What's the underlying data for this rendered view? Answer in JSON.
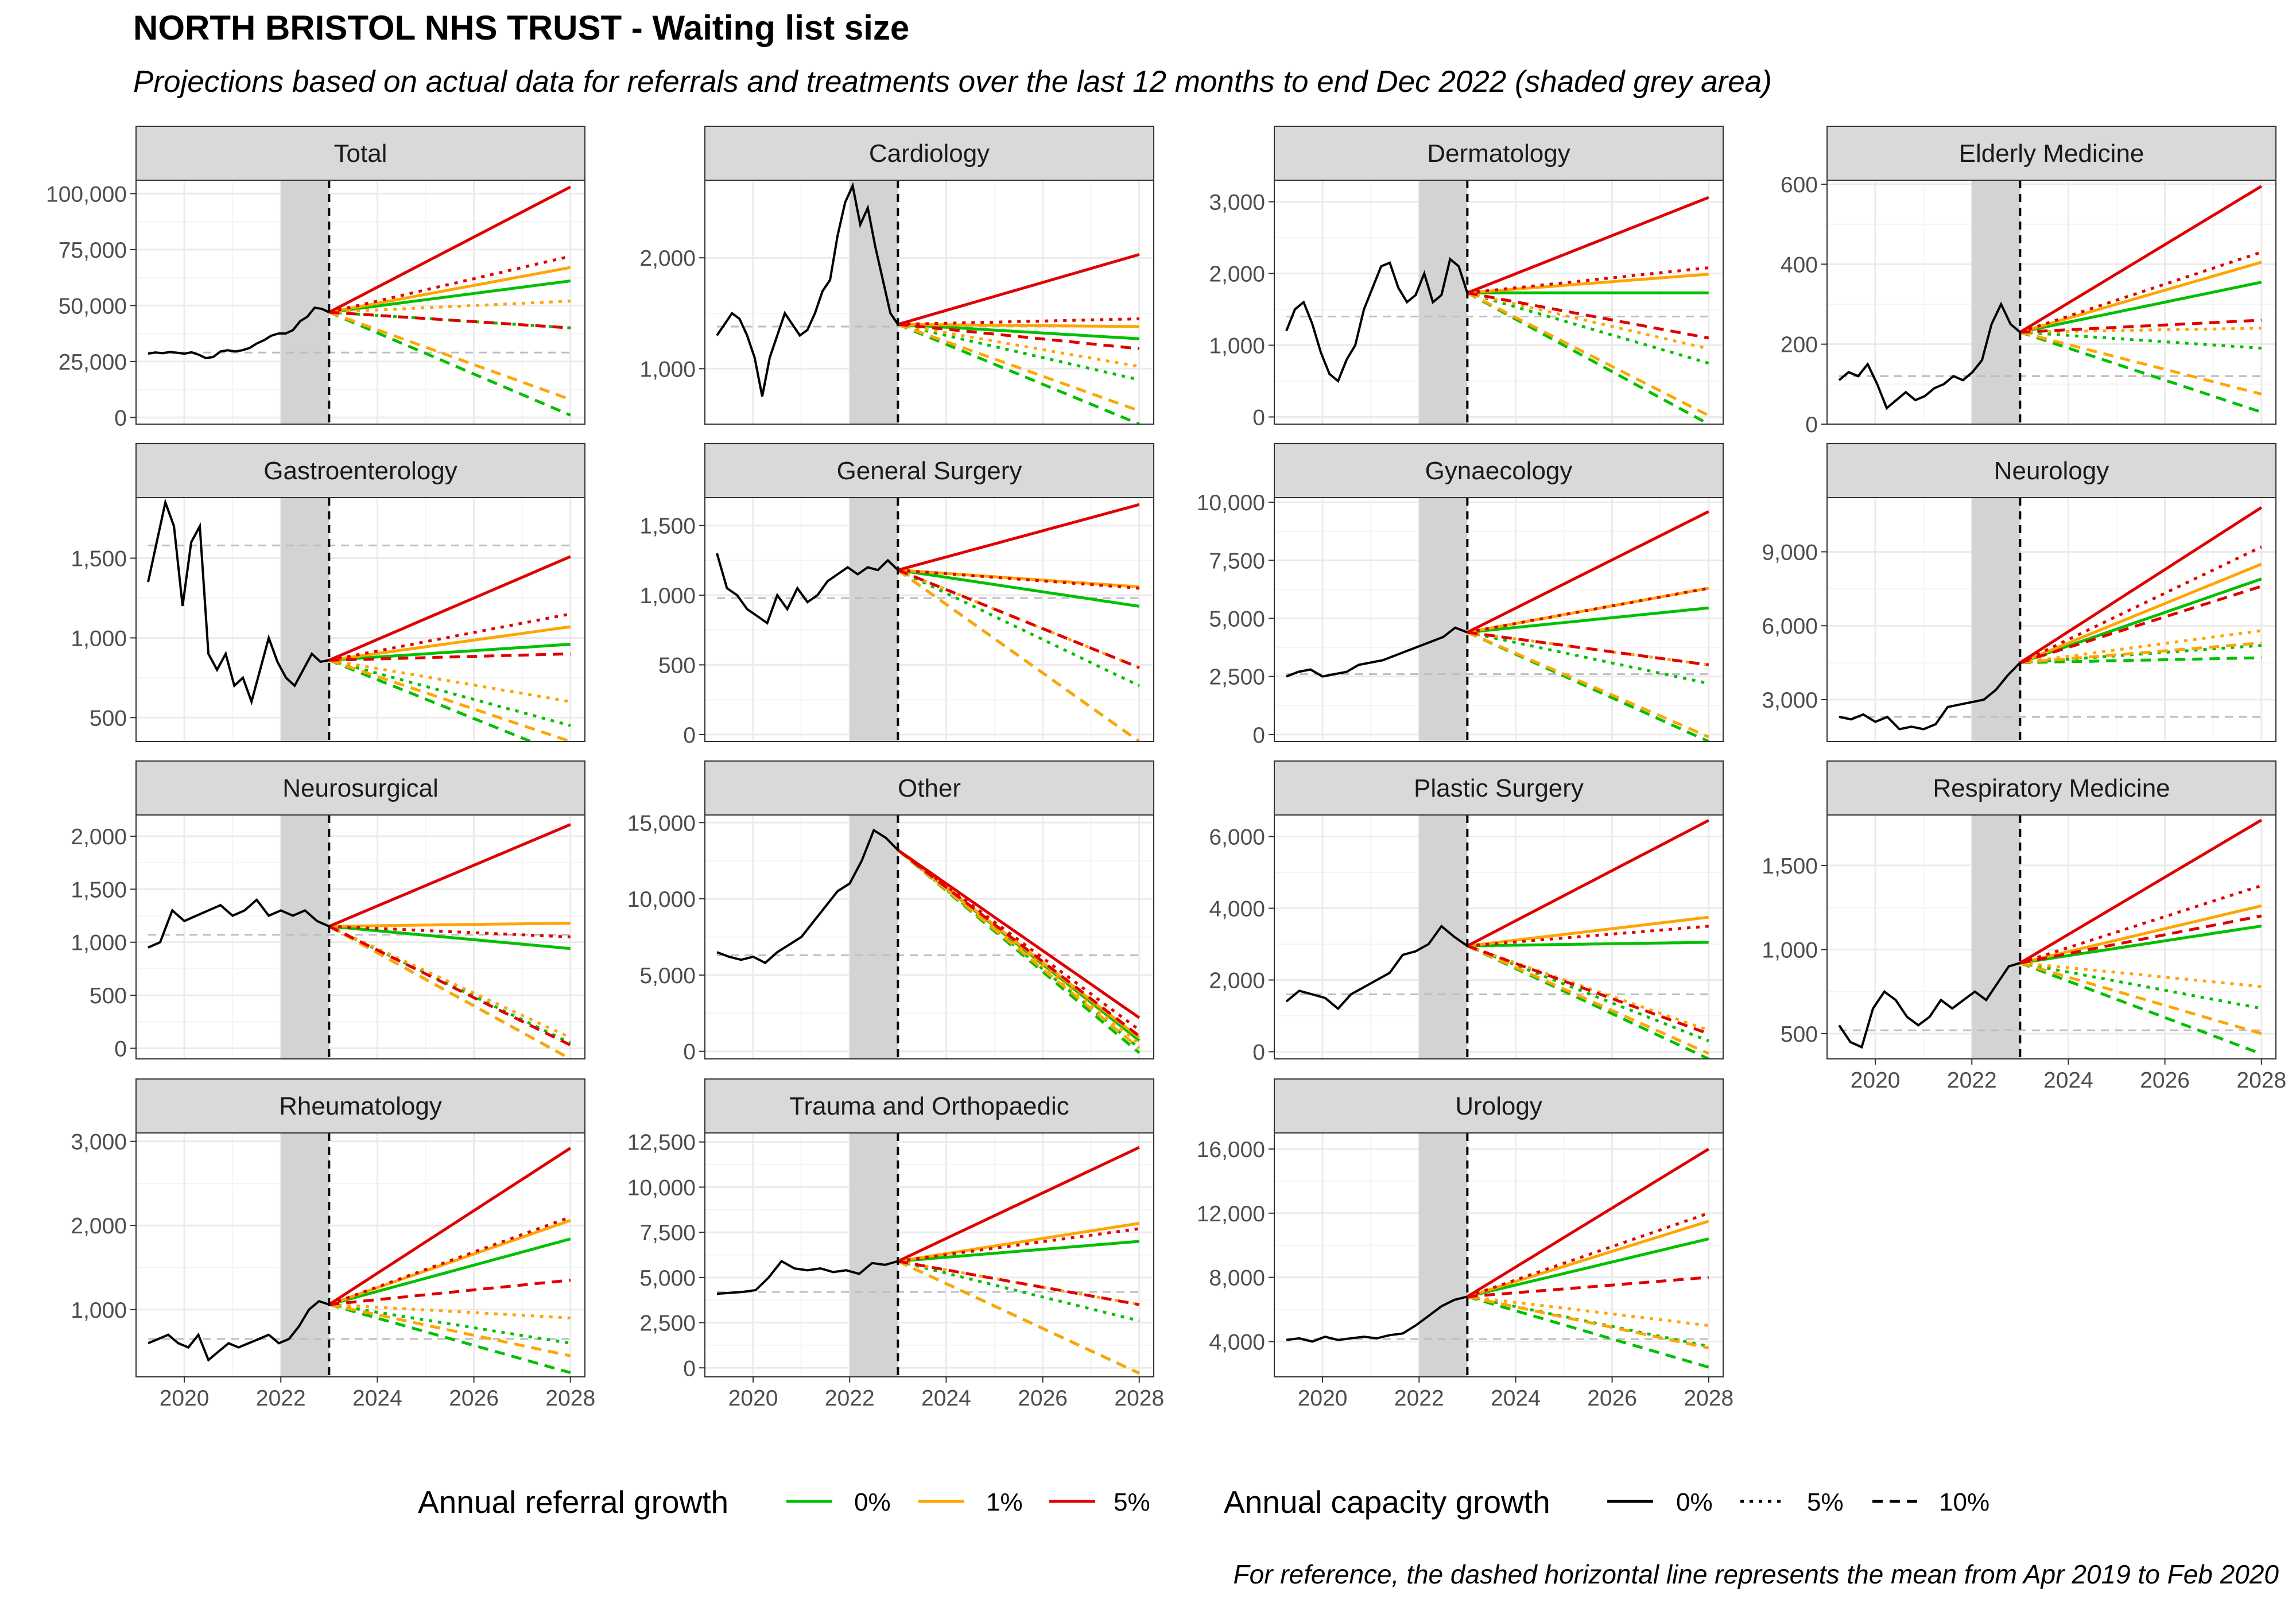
{
  "title": "NORTH BRISTOL NHS TRUST - Waiting list size",
  "subtitle": "Projections based on actual data for referrals and treatments over the last 12 months to end Dec 2022 (shaded grey area)",
  "caption": "For reference, the dashed horizontal line represents the mean from Apr 2019 to Feb 2020",
  "colors": {
    "referral_0": "#00c000",
    "referral_1": "#ffa500",
    "referral_5": "#e00000",
    "actual": "#000000",
    "reference": "#bebebe",
    "shade": "#d3d3d3",
    "strip": "#d9d9d9",
    "grid_major": "#ebebeb",
    "grid_minor": "#f4f4f4"
  },
  "legend": {
    "referral": {
      "title": "Annual referral growth",
      "items": [
        {
          "label": "0%",
          "color": "#00c000"
        },
        {
          "label": "1%",
          "color": "#ffa500"
        },
        {
          "label": "5%",
          "color": "#e00000"
        }
      ]
    },
    "capacity": {
      "title": "Annual capacity growth",
      "items": [
        {
          "label": "0%",
          "linetype": "solid"
        },
        {
          "label": "5%",
          "linetype": "dotted"
        },
        {
          "label": "10%",
          "linetype": "dashed"
        }
      ]
    }
  },
  "chart_data": {
    "type": "line",
    "x_axis": {
      "range": [
        2019.0,
        2028.3
      ],
      "ticks": [
        2020,
        2022,
        2024,
        2026,
        2028
      ],
      "tick_labels": [
        "2020",
        "2022",
        "2024",
        "2026",
        "2028"
      ]
    },
    "shaded_period": [
      2022.0,
      2023.0
    ],
    "forecast_start": 2023.0,
    "projection_end": 2028.0,
    "actual_start": 2019.25,
    "scenarios_order": [
      "0% referral / 0% capacity",
      "0% / 5%",
      "0% / 10%",
      "1% / 0%",
      "1% / 5%",
      "1% / 10%",
      "5% / 0%",
      "5% / 5%",
      "5% / 10%"
    ],
    "panels": [
      {
        "name": "Total",
        "ylim": [
          -3000,
          106000
        ],
        "yticks": [
          0,
          25000,
          50000,
          75000,
          100000
        ],
        "ytick_labels": [
          "0",
          "25,000",
          "50,000",
          "75,000",
          "100,000"
        ],
        "reference": 29000,
        "start": 47000,
        "actual": [
          28500,
          29000,
          28700,
          29200,
          28900,
          28500,
          29100,
          28000,
          26500,
          27000,
          29500,
          30000,
          29500,
          30000,
          31000,
          33000,
          34500,
          36500,
          37500,
          37500,
          39000,
          43000,
          45000,
          49000,
          48500,
          47000
        ],
        "proj": {
          "ref0": [
            61000,
            40000,
            1000
          ],
          "ref1": [
            67000,
            52000,
            8000
          ],
          "ref5": [
            103000,
            72000,
            40000
          ]
        }
      },
      {
        "name": "Cardiology",
        "ylim": [
          500,
          2700
        ],
        "yticks": [
          1000,
          2000
        ],
        "ytick_labels": [
          "1,000",
          "2,000"
        ],
        "reference": 1380,
        "start": 1400,
        "actual": [
          1300,
          1400,
          1500,
          1450,
          1300,
          1100,
          750,
          1100,
          1300,
          1500,
          1400,
          1300,
          1350,
          1500,
          1700,
          1800,
          2200,
          2500,
          2650,
          2300,
          2450,
          2100,
          1800,
          1500,
          1400
        ],
        "proj": {
          "ref0": [
            1270,
            900,
            500
          ],
          "ref1": [
            1380,
            1020,
            620
          ],
          "ref5": [
            2030,
            1450,
            1180
          ]
        }
      },
      {
        "name": "Dermatology",
        "ylim": [
          -100,
          3300
        ],
        "yticks": [
          0,
          1000,
          2000,
          3000
        ],
        "ytick_labels": [
          "0",
          "1,000",
          "2,000",
          "3,000"
        ],
        "reference": 1400,
        "start": 1730,
        "actual": [
          1200,
          1500,
          1600,
          1300,
          900,
          600,
          500,
          800,
          1000,
          1500,
          1800,
          2100,
          2150,
          1800,
          1600,
          1700,
          2000,
          1600,
          1700,
          2200,
          2100,
          1730
        ],
        "proj": {
          "ref0": [
            1730,
            750,
            -100
          ],
          "ref1": [
            1990,
            950,
            20
          ],
          "ref5": [
            3060,
            2080,
            1100
          ]
        }
      },
      {
        "name": "Elderly Medicine",
        "ylim": [
          0,
          610
        ],
        "yticks": [
          0,
          200,
          400,
          600
        ],
        "ytick_labels": [
          "0",
          "200",
          "400",
          "600"
        ],
        "reference": 120,
        "start": 230,
        "actual": [
          110,
          130,
          120,
          150,
          100,
          40,
          60,
          80,
          60,
          70,
          90,
          100,
          120,
          110,
          130,
          160,
          250,
          300,
          250,
          230
        ],
        "proj": {
          "ref0": [
            355,
            190,
            30
          ],
          "ref1": [
            405,
            240,
            75
          ],
          "ref5": [
            595,
            430,
            260
          ]
        }
      },
      {
        "name": "Gastroenterology",
        "ylim": [
          350,
          1880
        ],
        "yticks": [
          500,
          1000,
          1500
        ],
        "ytick_labels": [
          "500",
          "1,000",
          "1,500"
        ],
        "reference": 1580,
        "start": 860,
        "actual": [
          1350,
          1600,
          1850,
          1700,
          1200,
          1600,
          1700,
          900,
          800,
          900,
          700,
          750,
          600,
          800,
          1000,
          850,
          750,
          700,
          800,
          900,
          850,
          860
        ],
        "proj": {
          "ref0": [
            960,
            450,
            250
          ],
          "ref1": [
            1070,
            600,
            350
          ],
          "ref5": [
            1510,
            1150,
            900
          ]
        }
      },
      {
        "name": "General Surgery",
        "ylim": [
          -50,
          1700
        ],
        "yticks": [
          0,
          500,
          1000,
          1500
        ],
        "ytick_labels": [
          "0",
          "500",
          "1,000",
          "1,500"
        ],
        "reference": 980,
        "start": 1180,
        "actual": [
          1300,
          1050,
          1000,
          900,
          850,
          800,
          1000,
          900,
          1050,
          950,
          1000,
          1100,
          1150,
          1200,
          1150,
          1200,
          1180,
          1250,
          1180
        ],
        "proj": {
          "ref0": [
            920,
            350,
            -50
          ],
          "ref1": [
            1060,
            480,
            -50
          ],
          "ref5": [
            1650,
            1050,
            480
          ]
        }
      },
      {
        "name": "Gynaecology",
        "ylim": [
          -300,
          10200
        ],
        "yticks": [
          0,
          2500,
          5000,
          7500,
          10000
        ],
        "ytick_labels": [
          "0",
          "2,500",
          "5,000",
          "7,500",
          "10,000"
        ],
        "reference": 2600,
        "start": 4400,
        "actual": [
          2500,
          2700,
          2800,
          2500,
          2600,
          2700,
          3000,
          3100,
          3200,
          3400,
          3600,
          3800,
          4000,
          4200,
          4600,
          4400
        ],
        "proj": {
          "ref0": [
            5450,
            2200,
            -300
          ],
          "ref1": [
            6300,
            3000,
            -100
          ],
          "ref5": [
            9600,
            6300,
            3000
          ]
        }
      },
      {
        "name": "Neurology",
        "ylim": [
          1300,
          11200
        ],
        "yticks": [
          3000,
          6000,
          9000
        ],
        "ytick_labels": [
          "3,000",
          "6,000",
          "9,000"
        ],
        "reference": 2300,
        "start": 4500,
        "actual": [
          2300,
          2200,
          2400,
          2100,
          2300,
          1800,
          1900,
          1800,
          2000,
          2700,
          2800,
          2900,
          3000,
          3400,
          4000,
          4500
        ],
        "proj": {
          "ref0": [
            7900,
            5200,
            4700
          ],
          "ref1": [
            8500,
            5800,
            5300
          ],
          "ref5": [
            10800,
            9200,
            7600
          ]
        }
      },
      {
        "name": "Neurosurgical",
        "ylim": [
          -100,
          2200
        ],
        "yticks": [
          0,
          500,
          1000,
          1500,
          2000
        ],
        "ytick_labels": [
          "0",
          "500",
          "1,000",
          "1,500",
          "2,000"
        ],
        "reference": 1070,
        "start": 1150,
        "actual": [
          950,
          1000,
          1300,
          1200,
          1250,
          1300,
          1350,
          1250,
          1300,
          1400,
          1250,
          1300,
          1250,
          1300,
          1200,
          1150
        ],
        "proj": {
          "ref0": [
            940,
            50,
            -100
          ],
          "ref1": [
            1180,
            100,
            -100
          ],
          "ref5": [
            2110,
            1050,
            30
          ]
        }
      },
      {
        "name": "Other",
        "ylim": [
          -500,
          15500
        ],
        "yticks": [
          0,
          5000,
          10000,
          15000
        ],
        "ytick_labels": [
          "0",
          "5,000",
          "10,000",
          "15,000"
        ],
        "reference": 6300,
        "start": 13200,
        "actual": [
          6500,
          6200,
          6000,
          6200,
          5800,
          6500,
          7000,
          7500,
          8500,
          9500,
          10500,
          11000,
          12500,
          14500,
          14000,
          13200
        ],
        "proj": {
          "ref0": [
            700,
            200,
            -100
          ],
          "ref1": [
            900,
            500,
            200
          ],
          "ref5": [
            2200,
            1400,
            1000
          ]
        }
      },
      {
        "name": "Plastic Surgery",
        "ylim": [
          -200,
          6600
        ],
        "yticks": [
          0,
          2000,
          4000,
          6000
        ],
        "ytick_labels": [
          "0",
          "2,000",
          "4,000",
          "6,000"
        ],
        "reference": 1600,
        "start": 2950,
        "actual": [
          1400,
          1700,
          1600,
          1500,
          1200,
          1600,
          1800,
          2000,
          2200,
          2700,
          2800,
          3000,
          3500,
          3200,
          2950
        ],
        "proj": {
          "ref0": [
            3050,
            300,
            -200
          ],
          "ref1": [
            3750,
            600,
            -50
          ],
          "ref5": [
            6450,
            3500,
            500
          ]
        }
      },
      {
        "name": "Respiratory Medicine",
        "ylim": [
          350,
          1800
        ],
        "yticks": [
          500,
          1000,
          1500
        ],
        "ytick_labels": [
          "500",
          "1,000",
          "1,500"
        ],
        "reference": 520,
        "start": 920,
        "actual": [
          550,
          450,
          420,
          650,
          750,
          700,
          600,
          550,
          600,
          700,
          650,
          700,
          750,
          700,
          800,
          900,
          920
        ],
        "proj": {
          "ref0": [
            1140,
            650,
            380
          ],
          "ref1": [
            1260,
            780,
            500
          ],
          "ref5": [
            1770,
            1380,
            1200
          ]
        }
      },
      {
        "name": "Rheumatology",
        "ylim": [
          200,
          3100
        ],
        "yticks": [
          1000,
          2000,
          3000
        ],
        "ytick_labels": [
          "1,000",
          "2,000",
          "3,000"
        ],
        "reference": 650,
        "start": 1060,
        "actual": [
          600,
          650,
          700,
          600,
          550,
          700,
          400,
          500,
          600,
          550,
          600,
          650,
          700,
          600,
          650,
          800,
          1000,
          1100,
          1060
        ],
        "proj": {
          "ref0": [
            1840,
            600,
            250
          ],
          "ref1": [
            2060,
            900,
            450
          ],
          "ref5": [
            2920,
            2100,
            1350
          ]
        }
      },
      {
        "name": "Trauma and Orthopaedic",
        "ylim": [
          -500,
          13000
        ],
        "yticks": [
          0,
          2500,
          5000,
          7500,
          10000,
          12500
        ],
        "ytick_labels": [
          "0",
          "2,500",
          "5,000",
          "7,500",
          "10,000",
          "12,500"
        ],
        "reference": 4200,
        "start": 5900,
        "actual": [
          4100,
          4150,
          4200,
          4300,
          5000,
          5900,
          5500,
          5400,
          5500,
          5300,
          5400,
          5200,
          5800,
          5700,
          5900
        ],
        "proj": {
          "ref0": [
            7000,
            2600,
            -300
          ],
          "ref1": [
            8000,
            3500,
            -300
          ],
          "ref5": [
            12200,
            7700,
            3500
          ]
        }
      },
      {
        "name": "Urology",
        "ylim": [
          1800,
          17000
        ],
        "yticks": [
          4000,
          8000,
          12000,
          16000
        ],
        "ytick_labels": [
          "4,000",
          "8,000",
          "12,000",
          "16,000"
        ],
        "reference": 4150,
        "start": 6800,
        "actual": [
          4100,
          4200,
          4000,
          4300,
          4100,
          4200,
          4300,
          4200,
          4400,
          4500,
          5000,
          5600,
          6200,
          6600,
          6800
        ],
        "proj": {
          "ref0": [
            10400,
            3700,
            2400
          ],
          "ref1": [
            11500,
            5000,
            3600
          ],
          "ref5": [
            16000,
            12000,
            8000
          ]
        }
      }
    ]
  }
}
